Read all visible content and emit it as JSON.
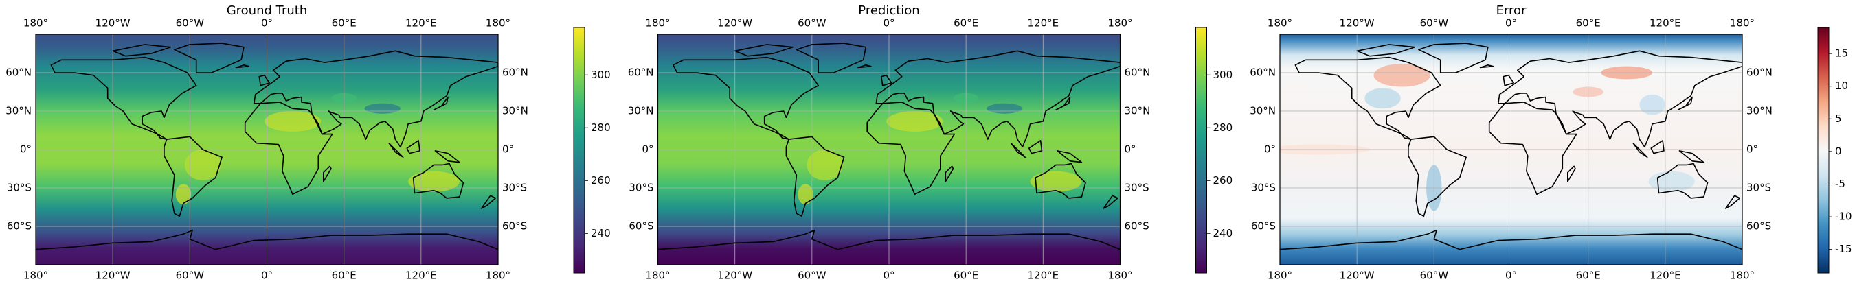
{
  "xlim": [
    -180,
    180
  ],
  "ylim": [
    -90,
    90
  ],
  "xticks": [
    {
      "value": -180,
      "label": "180°"
    },
    {
      "value": -120,
      "label": "120°W"
    },
    {
      "value": -60,
      "label": "60°W"
    },
    {
      "value": 0,
      "label": "0°"
    },
    {
      "value": 60,
      "label": "60°E"
    },
    {
      "value": 120,
      "label": "120°E"
    },
    {
      "value": 180,
      "label": "180°"
    }
  ],
  "yticks": [
    {
      "value": 60,
      "label": "60°N"
    },
    {
      "value": 30,
      "label": "30°N"
    },
    {
      "value": 0,
      "label": "0°"
    },
    {
      "value": -30,
      "label": "30°S"
    },
    {
      "value": -60,
      "label": "60°S"
    }
  ],
  "panels": [
    {
      "title": "Ground Truth",
      "colormap": "viridis",
      "clim": [
        225,
        318
      ],
      "cticks": [
        240,
        260,
        280,
        300
      ]
    },
    {
      "title": "Prediction",
      "colormap": "viridis",
      "clim": [
        225,
        318
      ],
      "cticks": [
        240,
        260,
        280,
        300
      ]
    },
    {
      "title": "Error",
      "colormap": "RdBu_r",
      "clim": [
        -18.6,
        19
      ],
      "cticks": [
        -15,
        -10,
        -5,
        0,
        5,
        10,
        15
      ]
    }
  ]
}
